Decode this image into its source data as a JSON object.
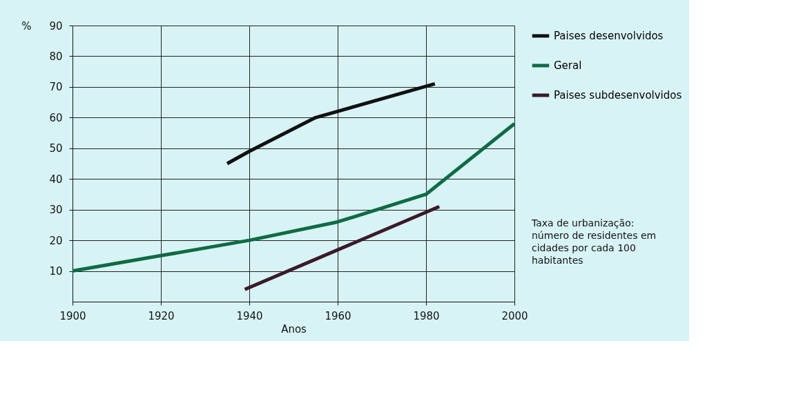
{
  "chart_data": {
    "type": "line",
    "xlabel": "Anos",
    "ylabel": "%",
    "series": [
      {
        "name": "Paises desenvolvidos",
        "color": "#111111",
        "x": [
          1935,
          1940,
          1955,
          1982
        ],
        "values": [
          45,
          49,
          60,
          71
        ]
      },
      {
        "name": "Geral",
        "color": "#0f6b45",
        "x": [
          1900,
          1920,
          1940,
          1960,
          1980,
          2000
        ],
        "values": [
          10,
          15,
          20,
          26,
          35,
          58
        ]
      },
      {
        "name": "Paises subdesenvolvidos",
        "color": "#3a1a2a",
        "x": [
          1939,
          1983
        ],
        "values": [
          4,
          31
        ]
      }
    ],
    "xlim": [
      1900,
      2000
    ],
    "xticks": [
      1900,
      1920,
      1940,
      1960,
      1980,
      2000
    ],
    "ylim": [
      0,
      90
    ],
    "yticks": [
      10,
      20,
      30,
      40,
      50,
      60,
      70,
      80,
      90
    ],
    "grid": true,
    "legend": "right",
    "marker": "none",
    "line_style": "solid",
    "annotations": [
      "Taxa de urbanização: número de residentes em cidades por cada 100 habitantes"
    ]
  }
}
